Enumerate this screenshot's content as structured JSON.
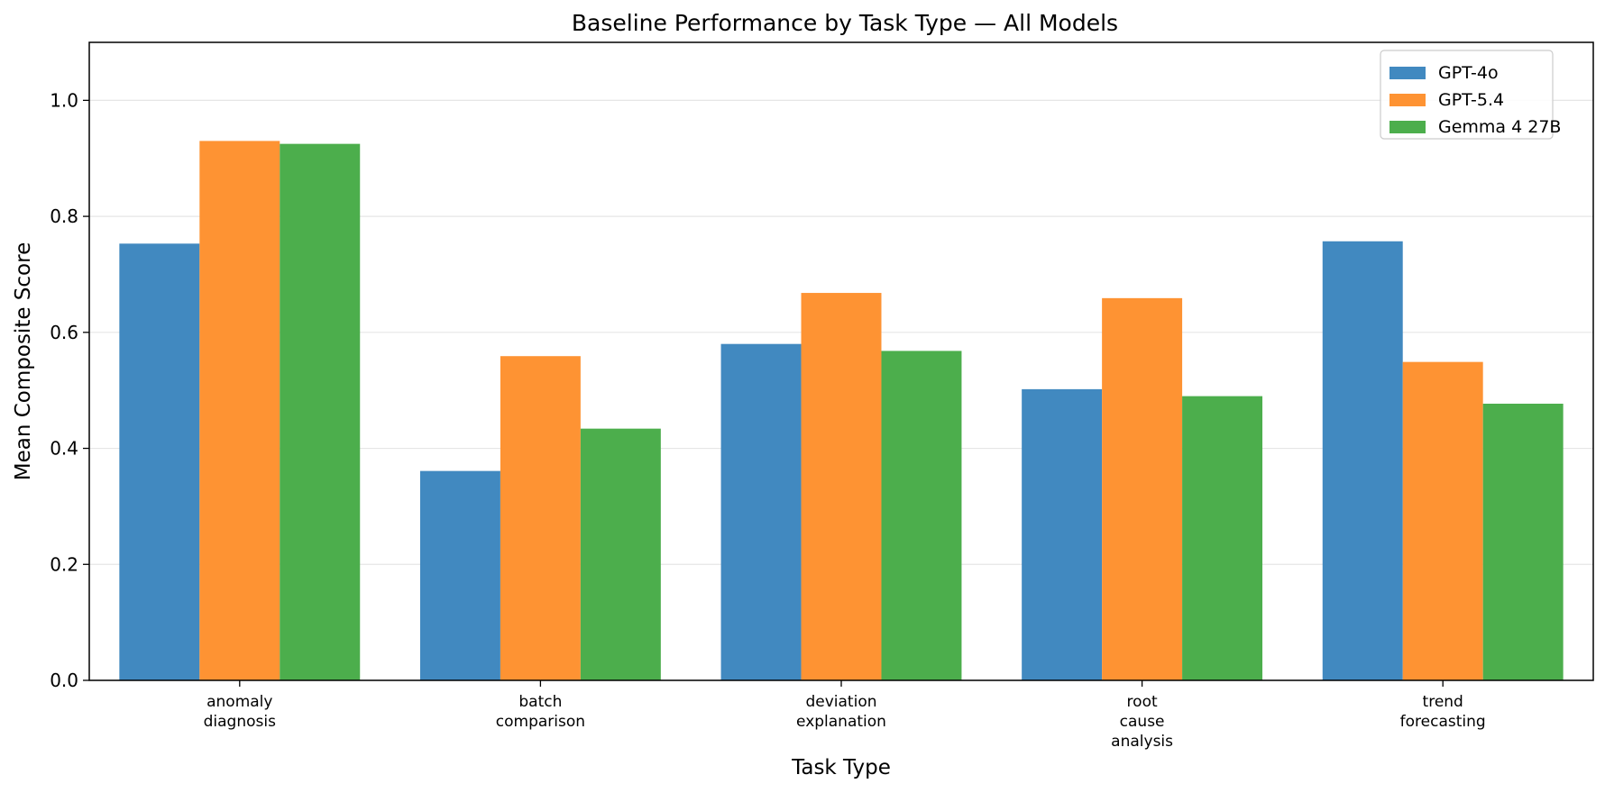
{
  "chart_data": {
    "type": "bar",
    "title": "Baseline Performance by Task Type — All Models",
    "xlabel": "Task Type",
    "ylabel": "Mean Composite Score",
    "ylim": [
      0,
      1.1
    ],
    "yticks": [
      "0.0",
      "0.2",
      "0.4",
      "0.6",
      "0.8",
      "1.0"
    ],
    "grid": "horizontal",
    "legend_position": "top-right",
    "categories": [
      [
        "anomaly",
        "diagnosis"
      ],
      [
        "batch",
        "comparison"
      ],
      [
        "deviation",
        "explanation"
      ],
      [
        "root",
        "cause",
        "analysis"
      ],
      [
        "trend",
        "forecasting"
      ]
    ],
    "series": [
      {
        "name": "GPT-4o",
        "color": "#4189c0",
        "values": [
          0.753,
          0.361,
          0.58,
          0.502,
          0.757
        ]
      },
      {
        "name": "GPT-5.4",
        "color": "#fe9333",
        "values": [
          0.93,
          0.559,
          0.668,
          0.659,
          0.549
        ]
      },
      {
        "name": "Gemma 4 27B",
        "color": "#4cae4c",
        "values": [
          0.925,
          0.434,
          0.568,
          0.49,
          0.477
        ]
      }
    ]
  }
}
